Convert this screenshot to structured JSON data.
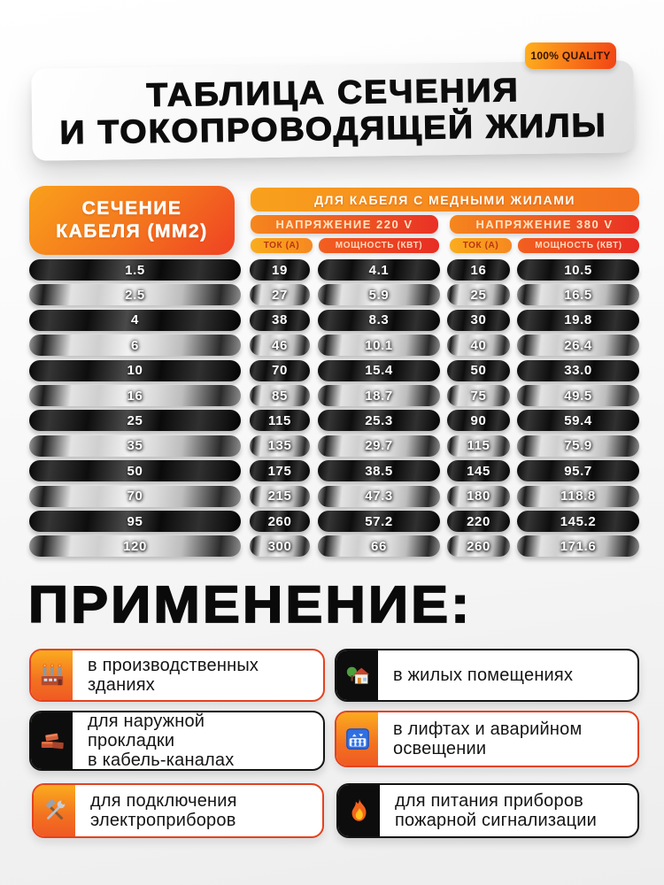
{
  "badge": {
    "label": "100% QUALITY"
  },
  "title": {
    "line1": "ТАБЛИЦА СЕЧЕНИЯ",
    "line2": "И ТОКОПРОВОДЯЩЕЙ ЖИЛЫ"
  },
  "table": {
    "section_header": {
      "line1": "СЕЧЕНИЕ",
      "line2": "КАБЕЛЯ (ММ2)"
    },
    "copper_header": "ДЛЯ КАБЕЛЯ С МЕДНЫМИ ЖИЛАМИ",
    "voltage_groups": [
      {
        "label": "НАПРЯЖЕНИЕ 220 V",
        "columns": [
          "ТОК (А)",
          "МОЩНОСТЬ (КВТ)"
        ]
      },
      {
        "label": "НАПРЯЖЕНИЕ 380 V",
        "columns": [
          "ТОК (А)",
          "МОЩНОСТЬ (КВТ)"
        ]
      }
    ],
    "rows": [
      [
        "1.5",
        "19",
        "4.1",
        "16",
        "10.5"
      ],
      [
        "2.5",
        "27",
        "5.9",
        "25",
        "16.5"
      ],
      [
        "4",
        "38",
        "8.3",
        "30",
        "19.8"
      ],
      [
        "6",
        "46",
        "10.1",
        "40",
        "26.4"
      ],
      [
        "10",
        "70",
        "15.4",
        "50",
        "33.0"
      ],
      [
        "16",
        "85",
        "18.7",
        "75",
        "49.5"
      ],
      [
        "25",
        "115",
        "25.3",
        "90",
        "59.4"
      ],
      [
        "35",
        "135",
        "29.7",
        "115",
        "75.9"
      ],
      [
        "50",
        "175",
        "38.5",
        "145",
        "95.7"
      ],
      [
        "70",
        "215",
        "47.3",
        "180",
        "118.8"
      ],
      [
        "95",
        "260",
        "57.2",
        "220",
        "145.2"
      ],
      [
        "120",
        "300",
        "66",
        "260",
        "171.6"
      ]
    ]
  },
  "applications": {
    "heading": "ПРИМЕНЕНИЕ:",
    "items": [
      {
        "icon": "factory-icon",
        "style": "orange",
        "text": "в производственных\nзданиях"
      },
      {
        "icon": "house-icon",
        "style": "black",
        "text": "в жилых помещениях"
      },
      {
        "icon": "bricks-icon",
        "style": "black",
        "text": "для наружной\nпрокладки\nв кабель-каналах"
      },
      {
        "icon": "elevator-icon",
        "style": "orange",
        "text": "в лифтах и аварийном\nосвещении"
      },
      {
        "icon": "tools-icon",
        "style": "orange",
        "text": "для подключения\nэлектроприборов"
      },
      {
        "icon": "fire-icon",
        "style": "black",
        "text": "для питания приборов\nпожарной сигнализации"
      }
    ]
  },
  "colors": {
    "orange_light": "#FBA51D",
    "orange_deep": "#F04E23",
    "red_accent": "#E8262A",
    "pill_black": "#0B0B0B",
    "metal_silver": "#D9D9D9",
    "badge_text": "#331104",
    "tok_text_red": "#B93412",
    "page_bg": "#EDEDED"
  },
  "chart_data": {
    "type": "table",
    "title": "ТАБЛИЦА СЕЧЕНИЯ И ТОКОПРОВОДЯЩЕЙ ЖИЛЫ",
    "subtitle": "ДЛЯ КАБЕЛЯ С МЕДНЫМИ ЖИЛАМИ",
    "columns": [
      "СЕЧЕНИЕ КАБЕЛЯ (ММ2)",
      "НАПРЯЖЕНИЕ 220 V — ТОК (А)",
      "НАПРЯЖЕНИЕ 220 V — МОЩНОСТЬ (КВТ)",
      "НАПРЯЖЕНИЕ 380 V — ТОК (А)",
      "НАПРЯЖЕНИЕ 380 V — МОЩНОСТЬ (КВТ)"
    ],
    "sections_mm2": [
      1.5,
      2.5,
      4,
      6,
      10,
      16,
      25,
      35,
      50,
      70,
      95,
      120
    ],
    "current_220_a": [
      19,
      27,
      38,
      46,
      70,
      85,
      115,
      135,
      175,
      215,
      260,
      300
    ],
    "power_220_kw": [
      4.1,
      5.9,
      8.3,
      10.1,
      15.4,
      18.7,
      25.3,
      29.7,
      38.5,
      47.3,
      57.2,
      66
    ],
    "current_380_a": [
      16,
      25,
      30,
      40,
      50,
      75,
      90,
      115,
      145,
      180,
      220,
      260
    ],
    "power_380_kw": [
      10.5,
      16.5,
      19.8,
      26.4,
      33.0,
      49.5,
      59.4,
      75.9,
      95.7,
      118.8,
      145.2,
      171.6
    ]
  }
}
